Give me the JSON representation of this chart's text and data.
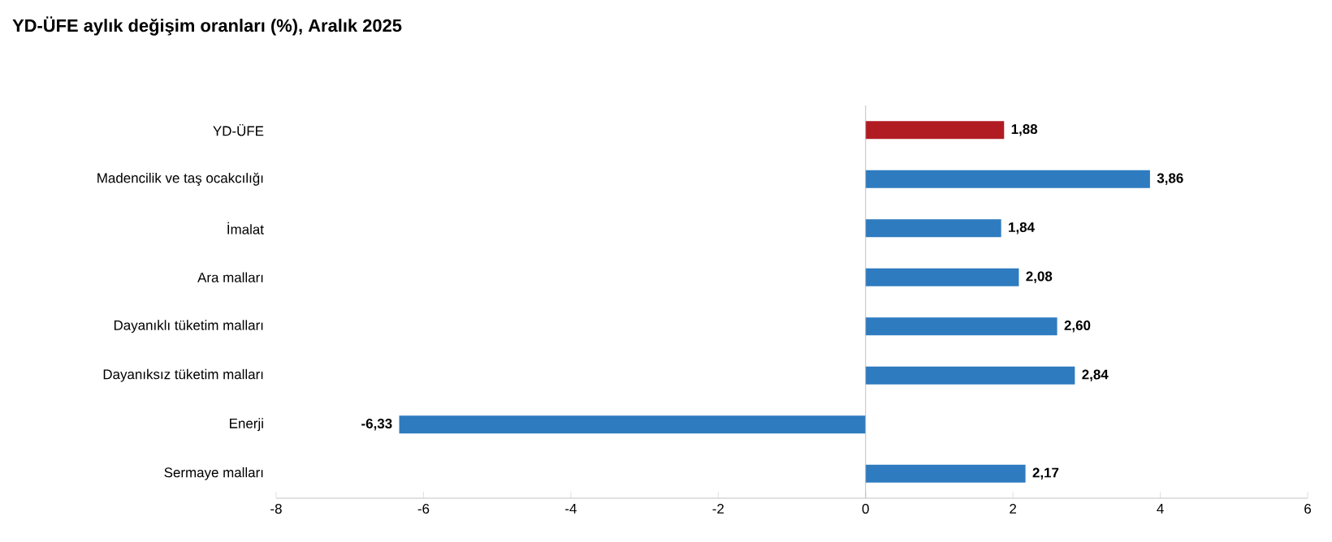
{
  "chart_data": {
    "type": "bar",
    "orientation": "horizontal",
    "title": "YD-ÜFE aylık değişim oranları (%), Aralık 2025",
    "categories": [
      "YD-ÜFE",
      "Madencilik ve taş ocakcılığı",
      "İmalat",
      "Ara malları",
      "Dayanıklı tüketim malları",
      "Dayanıksız tüketim malları",
      "Enerji",
      "Sermaye malları"
    ],
    "values": [
      1.88,
      3.86,
      1.84,
      2.08,
      2.6,
      2.84,
      -6.33,
      2.17
    ],
    "value_labels": [
      "1,88",
      "3,86",
      "1,84",
      "2,08",
      "2,60",
      "2,84",
      "-6,33",
      "2,17"
    ],
    "colors": [
      "#b01c22",
      "#2e7bbf",
      "#2e7bbf",
      "#2e7bbf",
      "#2e7bbf",
      "#2e7bbf",
      "#2e7bbf",
      "#2e7bbf"
    ],
    "xlim": [
      -8,
      6
    ],
    "xticks": [
      -8,
      -6,
      -4,
      -2,
      0,
      2,
      4,
      6
    ]
  }
}
